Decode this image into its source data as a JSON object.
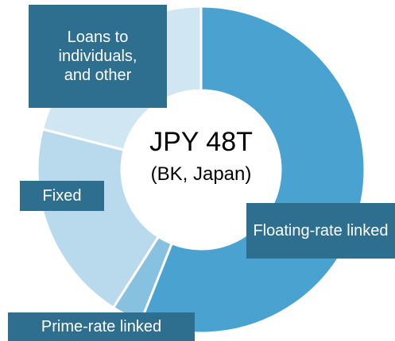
{
  "chart_data": {
    "type": "donut",
    "center_title": "JPY 48T",
    "center_subtitle": "(BK, Japan)",
    "categories": [
      "Floating-rate linked",
      "Prime-rate linked",
      "Fixed",
      "Loans to individuals, and other"
    ],
    "values": [
      56,
      3,
      20,
      21
    ],
    "colors": [
      "#4aa2d1",
      "#86c1df",
      "#b9daed",
      "#d0e6f3"
    ]
  }
}
